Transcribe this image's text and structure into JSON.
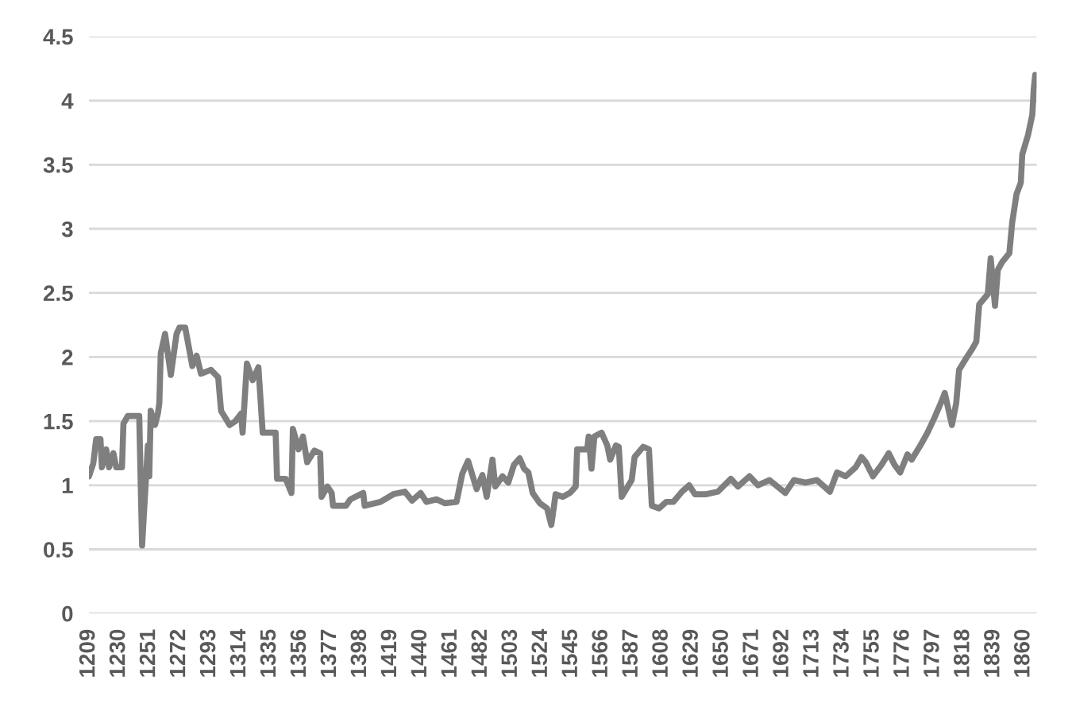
{
  "chart_data": {
    "type": "line",
    "x": [
      1209,
      1212,
      1214,
      1217,
      1218,
      1221,
      1223,
      1226,
      1228,
      1232,
      1233,
      1236,
      1244,
      1246,
      1250,
      1251,
      1252,
      1255,
      1257,
      1258,
      1259,
      1262,
      1266,
      1270,
      1272,
      1276,
      1281,
      1284,
      1287,
      1294,
      1299,
      1301,
      1307,
      1311,
      1315,
      1316,
      1319,
      1323,
      1327,
      1330,
      1335,
      1339,
      1340,
      1346,
      1350,
      1351,
      1355,
      1358,
      1361,
      1366,
      1370,
      1371,
      1375,
      1378,
      1379,
      1388,
      1391,
      1400,
      1401,
      1412,
      1421,
      1429,
      1434,
      1440,
      1444,
      1451,
      1457,
      1465,
      1469,
      1473,
      1479,
      1483,
      1486,
      1490,
      1492,
      1497,
      1501,
      1505,
      1509,
      1512,
      1515,
      1518,
      1523,
      1528,
      1531,
      1534,
      1539,
      1544,
      1548,
      1549,
      1556,
      1557,
      1559,
      1561,
      1566,
      1570,
      1572,
      1576,
      1578,
      1580,
      1587,
      1589,
      1595,
      1599,
      1601,
      1606,
      1611,
      1616,
      1622,
      1627,
      1631,
      1639,
      1647,
      1656,
      1661,
      1669,
      1675,
      1683,
      1694,
      1700,
      1708,
      1716,
      1725,
      1730,
      1736,
      1743,
      1747,
      1750,
      1755,
      1761,
      1766,
      1770,
      1774,
      1779,
      1782,
      1788,
      1793,
      1798,
      1803,
      1805,
      1810,
      1813,
      1815,
      1821,
      1824,
      1827,
      1829,
      1835,
      1837,
      1840,
      1842,
      1845,
      1850,
      1852,
      1855,
      1858,
      1859,
      1863,
      1866,
      1867,
      1868
    ],
    "series": [
      {
        "color": "#7f7f7f",
        "values": [
          1.07,
          1.17,
          1.36,
          1.36,
          1.14,
          1.28,
          1.14,
          1.25,
          1.14,
          1.14,
          1.48,
          1.54,
          1.54,
          0.53,
          1.31,
          1.07,
          1.58,
          1.47,
          1.56,
          1.64,
          2.03,
          2.18,
          1.86,
          2.18,
          2.23,
          2.23,
          1.93,
          2.01,
          1.87,
          1.9,
          1.84,
          1.58,
          1.47,
          1.5,
          1.56,
          1.41,
          1.95,
          1.82,
          1.92,
          1.41,
          1.41,
          1.41,
          1.05,
          1.05,
          0.94,
          1.44,
          1.28,
          1.38,
          1.18,
          1.27,
          1.25,
          0.91,
          0.99,
          0.94,
          0.84,
          0.84,
          0.89,
          0.94,
          0.84,
          0.87,
          0.93,
          0.95,
          0.88,
          0.94,
          0.87,
          0.89,
          0.86,
          0.87,
          1.09,
          1.19,
          0.97,
          1.08,
          0.91,
          1.2,
          0.99,
          1.07,
          1.02,
          1.16,
          1.21,
          1.13,
          1.1,
          0.94,
          0.86,
          0.82,
          0.69,
          0.93,
          0.91,
          0.94,
          0.99,
          1.28,
          1.28,
          1.38,
          1.13,
          1.38,
          1.41,
          1.31,
          1.2,
          1.31,
          1.3,
          0.91,
          1.04,
          1.22,
          1.3,
          1.28,
          0.84,
          0.82,
          0.87,
          0.87,
          0.95,
          1.0,
          0.93,
          0.93,
          0.95,
          1.05,
          0.99,
          1.07,
          1.0,
          1.04,
          0.94,
          1.04,
          1.02,
          1.04,
          0.95,
          1.1,
          1.07,
          1.14,
          1.22,
          1.18,
          1.07,
          1.16,
          1.25,
          1.16,
          1.1,
          1.24,
          1.2,
          1.31,
          1.41,
          1.53,
          1.66,
          1.72,
          1.47,
          1.64,
          1.9,
          2.01,
          2.06,
          2.12,
          2.41,
          2.49,
          2.77,
          2.4,
          2.68,
          2.74,
          2.81,
          3.05,
          3.27,
          3.36,
          3.58,
          3.73,
          3.89,
          4.09,
          4.2
        ]
      }
    ],
    "xlim": [
      1209,
      1869
    ],
    "xticks": [
      1209,
      1230,
      1251,
      1272,
      1293,
      1314,
      1335,
      1356,
      1377,
      1398,
      1419,
      1440,
      1461,
      1482,
      1503,
      1524,
      1545,
      1566,
      1587,
      1608,
      1629,
      1650,
      1671,
      1692,
      1713,
      1734,
      1755,
      1776,
      1797,
      1818,
      1839,
      1860
    ],
    "ylim": [
      0,
      4.5
    ],
    "yticks": [
      0,
      0.5,
      1,
      1.5,
      2,
      2.5,
      3,
      3.5,
      4,
      4.5
    ],
    "grid": "y",
    "marker": "none",
    "line_style": "solid"
  }
}
